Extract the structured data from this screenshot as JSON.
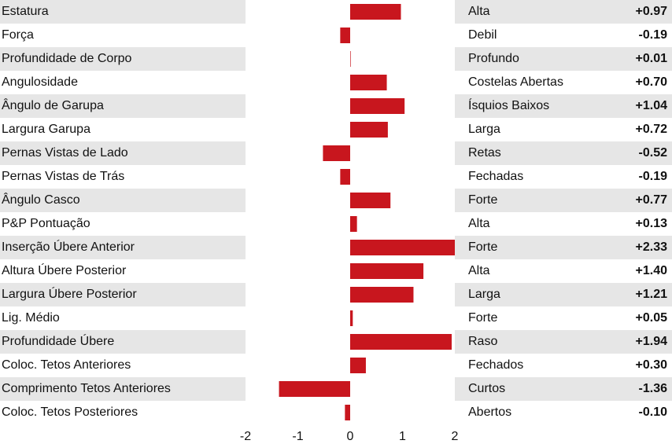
{
  "chart_data": {
    "type": "bar",
    "orientation": "horizontal",
    "categories": [
      "Estatura",
      "Força",
      "Profundidade de Corpo",
      "Angulosidade",
      "Ângulo de Garupa",
      "Largura Garupa",
      "Pernas Vistas de Lado",
      "Pernas Vistas de Trás",
      "Ângulo Casco",
      "P&P Pontuação",
      "Inserção Úbere Anterior",
      "Altura Úbere Posterior",
      "Largura Úbere Posterior",
      "Lig. Médio",
      "Profundidade Úbere",
      "Coloc. Tetos Anteriores",
      "Comprimento Tetos Anteriores",
      "Coloc. Tetos Posteriores"
    ],
    "descriptors": [
      "Alta",
      "Debil",
      "Profundo",
      "Costelas Abertas",
      "Ísquios Baixos",
      "Larga",
      "Retas",
      "Fechadas",
      "Forte",
      "Alta",
      "Forte",
      "Alta",
      "Larga",
      "Forte",
      "Raso",
      "Fechados",
      "Curtos",
      "Abertos"
    ],
    "values": [
      0.97,
      -0.19,
      0.01,
      0.7,
      1.04,
      0.72,
      -0.52,
      -0.19,
      0.77,
      0.13,
      2.33,
      1.4,
      1.21,
      0.05,
      1.94,
      0.3,
      -1.36,
      -0.1
    ],
    "value_labels": [
      "+0.97",
      "-0.19",
      "+0.01",
      "+0.70",
      "+1.04",
      "+0.72",
      "-0.52",
      "-0.19",
      "+0.77",
      "+0.13",
      "+2.33",
      "+1.40",
      "+1.21",
      "+0.05",
      "+1.94",
      "+0.30",
      "-1.36",
      "-0.10"
    ],
    "color": "#c8161e",
    "xlim": [
      -2,
      2
    ],
    "xticks": [
      -2,
      -1,
      0,
      1,
      2
    ],
    "grid": true
  }
}
